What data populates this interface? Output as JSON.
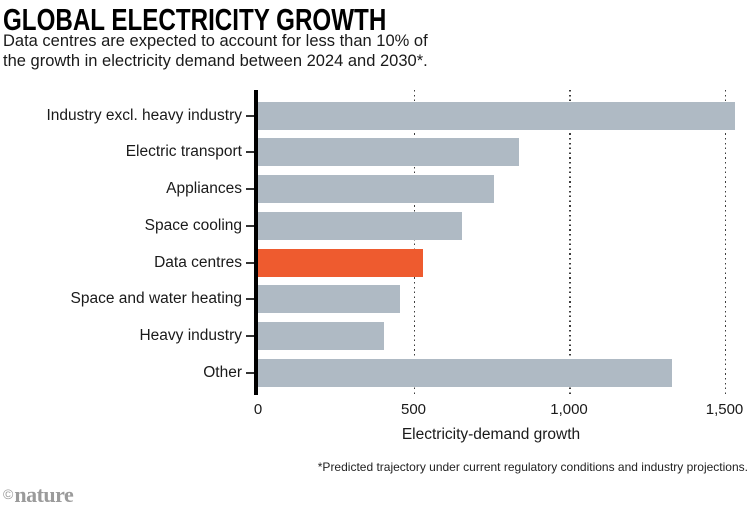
{
  "header": {
    "title": "GLOBAL ELECTRICITY GROWTH",
    "subtitle_line1": "Data centres are expected to account for less than 10% of",
    "subtitle_line2": "the growth in electricity demand between 2024 and 2030*."
  },
  "chart_data": {
    "type": "bar",
    "orientation": "horizontal",
    "title": "GLOBAL ELECTRICITY GROWTH",
    "categories": [
      "Industry excl. heavy industry",
      "Electric transport",
      "Appliances",
      "Space cooling",
      "Data centres",
      "Space and water heating",
      "Heavy industry",
      "Other"
    ],
    "values": [
      1535,
      840,
      760,
      655,
      530,
      455,
      405,
      1330
    ],
    "xlabel": "Electricity-demand growth",
    "xlim": [
      0,
      1500
    ],
    "xticks": [
      0,
      500,
      1000,
      1500
    ],
    "xtick_labels": [
      "0",
      "500",
      "1,000",
      "1,500"
    ],
    "grid": "vertical-dotted",
    "legend_position": "none",
    "bar_color": "#afbac4",
    "highlight_category": "Data centres",
    "highlight_color": "#ee5b2f"
  },
  "footer": {
    "footnote": "*Predicted trajectory under current regulatory conditions and industry projections.",
    "credit_symbol": "©",
    "credit_name": "nature"
  }
}
